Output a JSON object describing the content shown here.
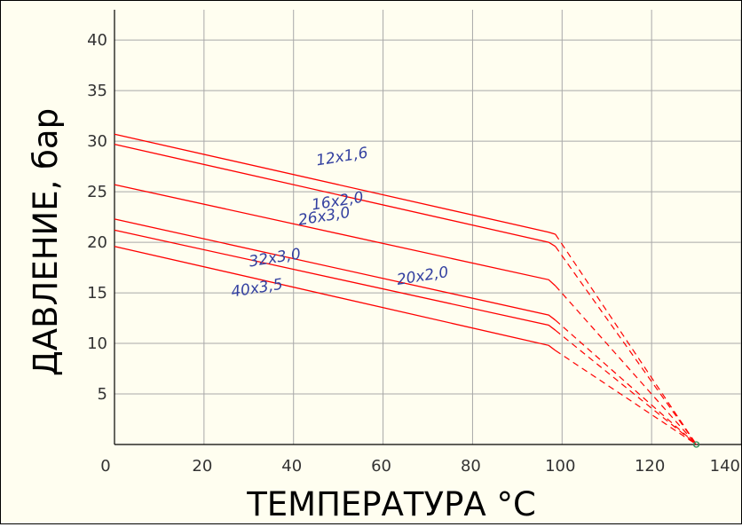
{
  "colors": {
    "background": "#fffef0",
    "grid": "#a8a8a8",
    "axis": "#000000",
    "line": "#ff0000",
    "label": "#3340a0",
    "convergence_marker": "#2e8b57"
  },
  "chart_data": {
    "type": "line",
    "title": "",
    "xlabel": "ТЕМПЕРАТУРА  °C",
    "ylabel": "ДАВЛЕНИЕ, бар",
    "xlim": [
      0,
      140
    ],
    "ylim": [
      0,
      43
    ],
    "x_ticks": [
      0,
      20,
      40,
      60,
      80,
      100,
      120,
      140
    ],
    "y_ticks": [
      5,
      10,
      15,
      20,
      25,
      30,
      35,
      40
    ],
    "grid": true,
    "legend": "none",
    "convergence_point": {
      "x": 130,
      "y": 0
    },
    "series": [
      {
        "name": "12x1,6",
        "solid": [
          [
            0,
            30.7
          ],
          [
            97,
            21.0
          ],
          [
            98.5,
            20.8
          ]
        ],
        "dashed": [
          [
            98.5,
            20.8
          ],
          [
            130,
            0
          ]
        ],
        "label_at": [
          51,
          28.0
        ]
      },
      {
        "name": "16x2,0",
        "solid": [
          [
            0,
            29.7
          ],
          [
            97,
            20.0
          ],
          [
            98.5,
            19.6
          ]
        ],
        "dashed": [
          [
            98.5,
            19.6
          ],
          [
            130,
            0
          ]
        ],
        "label_at": [
          50,
          23.6
        ]
      },
      {
        "name": "26x3,0",
        "solid": [
          [
            0,
            25.7
          ],
          [
            97,
            16.3
          ],
          [
            98.5,
            15.7
          ]
        ],
        "dashed": [
          [
            98.5,
            15.7
          ],
          [
            130,
            0
          ]
        ],
        "label_at": [
          47,
          22.1
        ]
      },
      {
        "name": "32x3,0",
        "solid": [
          [
            0,
            22.3
          ],
          [
            97,
            12.8
          ],
          [
            98.5,
            12.3
          ]
        ],
        "dashed": [
          [
            98.5,
            12.3
          ],
          [
            130,
            0
          ]
        ],
        "label_at": [
          36,
          18.0
        ]
      },
      {
        "name": "20x2,0",
        "solid": [
          [
            0,
            21.2
          ],
          [
            97,
            11.8
          ],
          [
            98.5,
            11.3
          ]
        ],
        "dashed": [
          [
            98.5,
            11.3
          ],
          [
            130,
            0
          ]
        ],
        "label_at": [
          69,
          16.2
        ]
      },
      {
        "name": "40x3,5",
        "solid": [
          [
            0,
            19.6
          ],
          [
            97,
            9.8
          ],
          [
            98.5,
            9.3
          ]
        ],
        "dashed": [
          [
            98.5,
            9.3
          ],
          [
            130,
            0
          ]
        ],
        "label_at": [
          32,
          15.0
        ]
      }
    ]
  }
}
